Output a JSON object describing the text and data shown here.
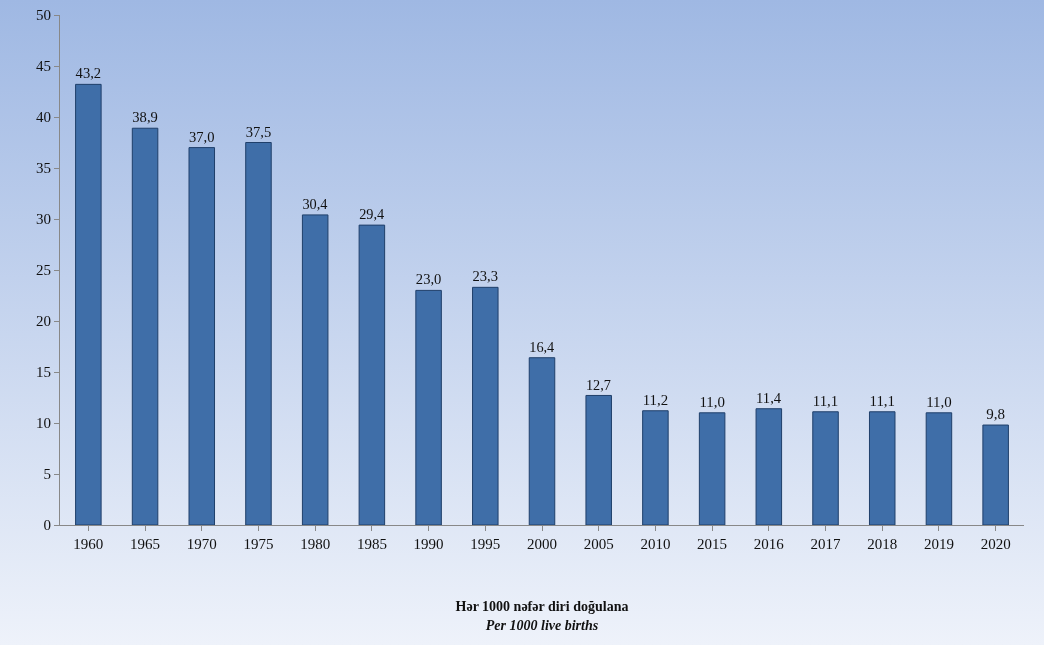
{
  "chart_data": {
    "type": "bar",
    "xlabel": "Hər 1000 nəfər diri doğulana\nPer 1000 live births",
    "categories": [
      "1960",
      "1965",
      "1970",
      "1975",
      "1980",
      "1985",
      "1990",
      "1995",
      "2000",
      "2005",
      "2010",
      "2015",
      "2016",
      "2017",
      "2018",
      "2019",
      "2020"
    ],
    "values": [
      43.2,
      38.9,
      37.0,
      37.5,
      30.4,
      29.4,
      23.0,
      23.3,
      16.4,
      12.7,
      11.2,
      11.0,
      11.4,
      11.1,
      11.1,
      11.0,
      9.8
    ],
    "value_labels": [
      "43,2",
      "38,9",
      "37,0",
      "37,5",
      "30,4",
      "29,4",
      "23,0",
      "23,3",
      "16,4",
      "12,7",
      "11,2",
      "11,0",
      "11,4",
      "11,1",
      "11,1",
      "11,0",
      "9,8"
    ],
    "color": "#3f6ea8",
    "ylim": [
      0,
      50
    ],
    "yticks": [
      0,
      5,
      10,
      15,
      20,
      25,
      30,
      35,
      40,
      45,
      50
    ],
    "grid": false
  }
}
